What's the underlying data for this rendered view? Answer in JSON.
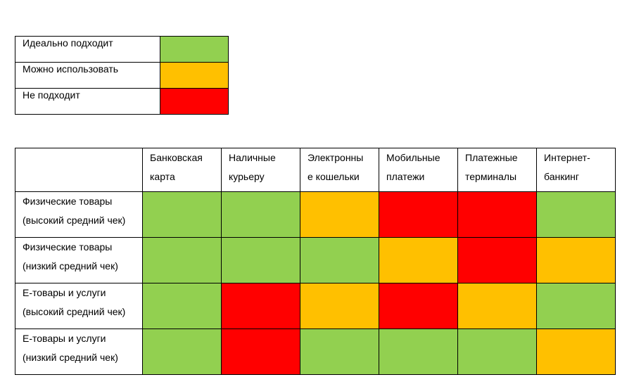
{
  "colors": {
    "green": "#92d050",
    "orange": "#ffc000",
    "red": "#ff0000"
  },
  "legend": [
    {
      "label": "Идеально подходит",
      "color": "green"
    },
    {
      "label": "Можно использовать",
      "color": "orange"
    },
    {
      "label": "Не подходит",
      "color": "red"
    }
  ],
  "matrix": {
    "columns": [
      [
        "Банковская",
        "карта"
      ],
      [
        "Наличные",
        "курьеру"
      ],
      [
        "Электронны",
        "е кошельки"
      ],
      [
        "Мобильные",
        "платежи"
      ],
      [
        "Платежные",
        "терминалы"
      ],
      [
        "Интернет-",
        "банкинг"
      ]
    ],
    "rows": [
      {
        "label": [
          "Физические товары",
          "(высокий средний чек)"
        ],
        "cells": [
          "green",
          "green",
          "orange",
          "red",
          "red",
          "green"
        ]
      },
      {
        "label": [
          "Физические товары",
          "(низкий средний чек)"
        ],
        "cells": [
          "green",
          "green",
          "green",
          "orange",
          "red",
          "orange"
        ]
      },
      {
        "label": [
          "Е-товары и услуги",
          "(высокий средний чек)"
        ],
        "cells": [
          "green",
          "red",
          "orange",
          "red",
          "orange",
          "green"
        ]
      },
      {
        "label": [
          "Е-товары и услуги",
          "(низкий средний чек)"
        ],
        "cells": [
          "green",
          "red",
          "green",
          "green",
          "green",
          "orange"
        ]
      }
    ]
  }
}
